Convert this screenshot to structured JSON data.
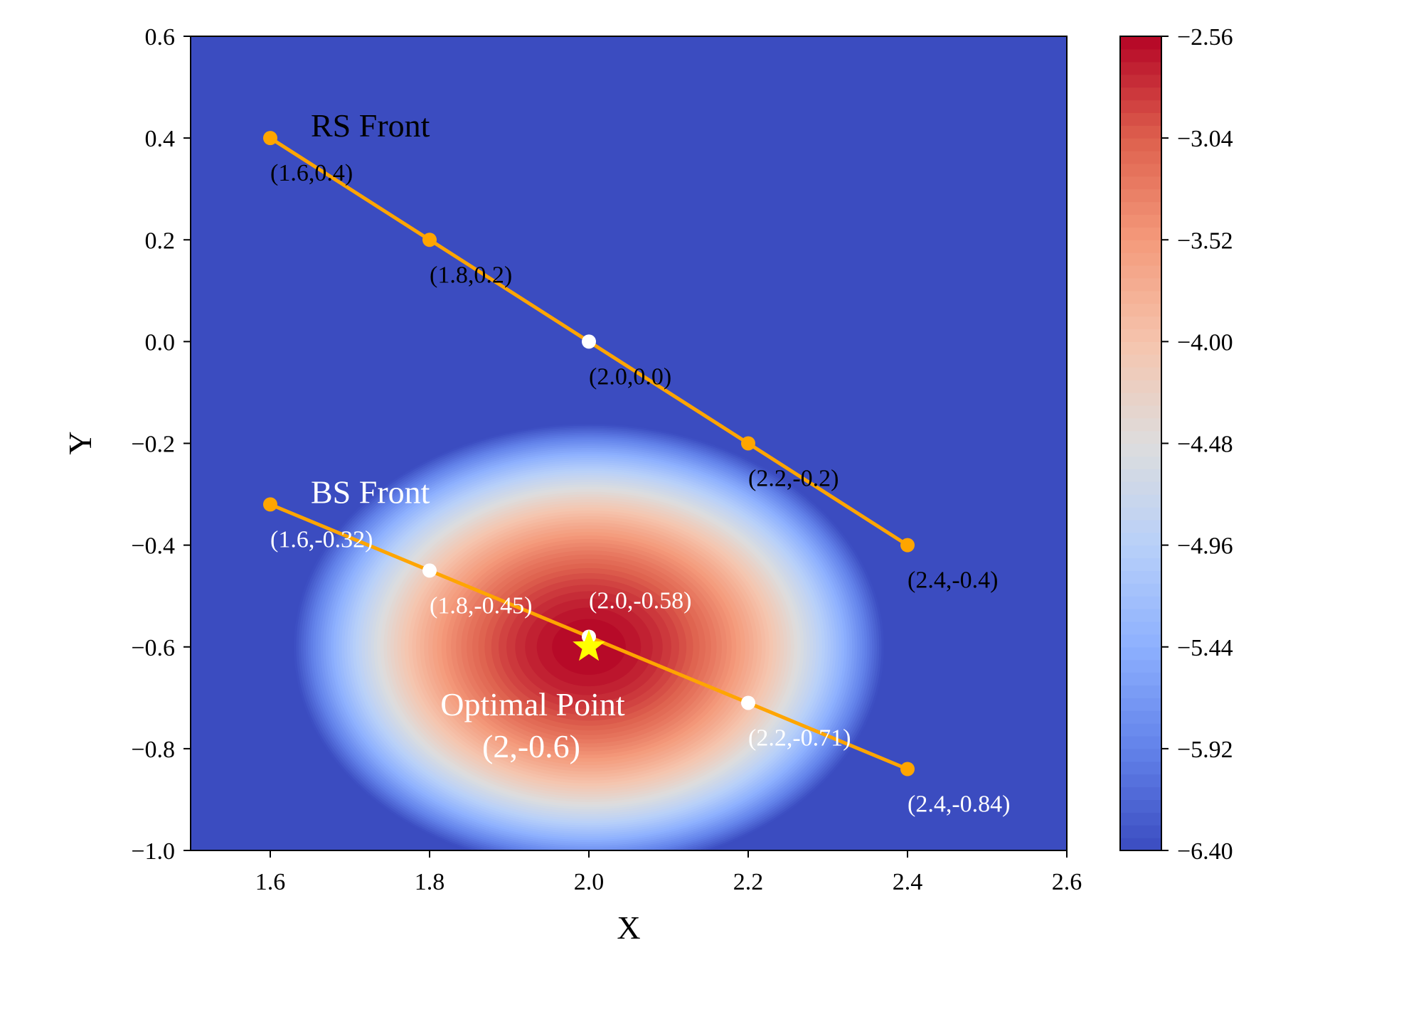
{
  "chart_data": {
    "type": "contour",
    "xlabel": "X",
    "ylabel": "Y",
    "xlim": [
      1.5,
      2.6
    ],
    "ylim": [
      -1.0,
      0.6
    ],
    "xticks": [
      "1.6",
      "1.8",
      "2.0",
      "2.2",
      "2.4",
      "2.6"
    ],
    "xtick_values": [
      1.6,
      1.8,
      2.0,
      2.2,
      2.4,
      2.6
    ],
    "yticks": [
      "0.6",
      "0.4",
      "0.2",
      "0.0",
      "−0.2",
      "−0.4",
      "−0.6",
      "−0.8",
      "−1.0"
    ],
    "ytick_values": [
      0.6,
      0.4,
      0.2,
      0.0,
      -0.2,
      -0.4,
      -0.6,
      -0.8,
      -1.0
    ],
    "colorbar": {
      "colormap": "coolwarm",
      "range": [
        -6.4,
        -2.56
      ],
      "ticks": [
        "−2.56",
        "−3.04",
        "−3.52",
        "−4.00",
        "−4.48",
        "−4.96",
        "−5.44",
        "−5.92",
        "−6.40"
      ],
      "tick_values": [
        -2.56,
        -3.04,
        -3.52,
        -4.0,
        -4.48,
        -4.96,
        -5.44,
        -5.92,
        -6.4
      ]
    },
    "surface": {
      "center": [
        2.0,
        -0.6
      ],
      "max_value": -2.56
    },
    "series": [
      {
        "name": "RS Front",
        "color": "#FFA500",
        "label_color": "#000000",
        "points": [
          {
            "x": 1.6,
            "y": 0.4,
            "label": "(1.6,0.4)",
            "marker": "orange"
          },
          {
            "x": 1.8,
            "y": 0.2,
            "label": "(1.8,0.2)",
            "marker": "orange"
          },
          {
            "x": 2.0,
            "y": 0.0,
            "label": "(2.0,0.0)",
            "marker": "white"
          },
          {
            "x": 2.2,
            "y": -0.2,
            "label": "(2.2,-0.2)",
            "marker": "orange"
          },
          {
            "x": 2.4,
            "y": -0.4,
            "label": "(2.4,-0.4)",
            "marker": "orange"
          }
        ]
      },
      {
        "name": "BS Front",
        "color": "#FFA500",
        "label_color": "#ffffff",
        "points": [
          {
            "x": 1.6,
            "y": -0.32,
            "label": "(1.6,-0.32)",
            "marker": "orange"
          },
          {
            "x": 1.8,
            "y": -0.45,
            "label": "(1.8,-0.45)",
            "marker": "white"
          },
          {
            "x": 2.0,
            "y": -0.58,
            "label": "(2.0,-0.58)",
            "marker": "white"
          },
          {
            "x": 2.2,
            "y": -0.71,
            "label": "(2.2,-0.71)",
            "marker": "white"
          },
          {
            "x": 2.4,
            "y": -0.84,
            "label": "(2.4,-0.84)",
            "marker": "orange"
          }
        ]
      }
    ],
    "optimal_point": {
      "x": 2.0,
      "y": -0.6,
      "label_line1": "Optimal Point",
      "label_line2": "(2,-0.6)",
      "marker_color": "#FFFF00"
    }
  }
}
